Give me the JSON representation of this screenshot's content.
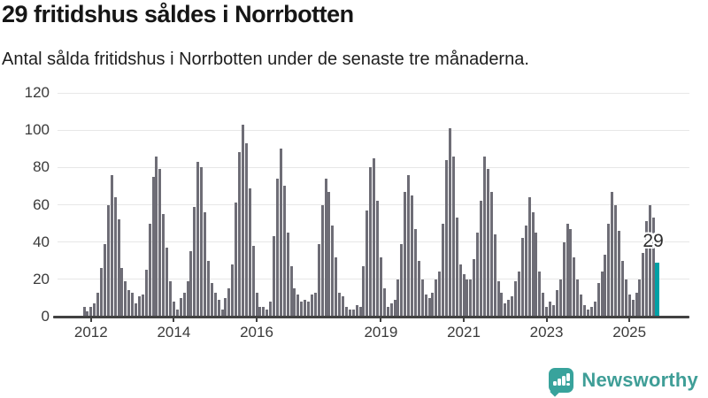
{
  "header": {
    "title": "29 fritidshus såldes i Norrbotten",
    "subtitle": "Antal sålda fritidshus i Norrbotten under de senaste tre månaderna."
  },
  "chart_data": {
    "type": "bar",
    "title": "29 fritidshus såldes i Norrbotten",
    "subtitle": "Antal sålda fritidshus i Norrbotten under de senaste tre månaderna.",
    "xlabel": "",
    "ylabel": "",
    "ylim": [
      0,
      120
    ],
    "y_ticks": [
      0,
      20,
      40,
      60,
      80,
      100,
      120
    ],
    "grid": true,
    "frequency": "monthly, rolling 3-month totals",
    "values": [
      5,
      3,
      5,
      7,
      13,
      26,
      39,
      60,
      76,
      64,
      52,
      26,
      19,
      14,
      13,
      7,
      11,
      12,
      25,
      50,
      75,
      86,
      79,
      55,
      37,
      19,
      8,
      4,
      10,
      13,
      19,
      35,
      59,
      83,
      80,
      56,
      30,
      18,
      13,
      9,
      4,
      10,
      15,
      28,
      61,
      88,
      103,
      93,
      69,
      38,
      13,
      5,
      5,
      4,
      8,
      43,
      74,
      90,
      70,
      45,
      27,
      15,
      12,
      8,
      9,
      8,
      12,
      13,
      39,
      60,
      74,
      67,
      49,
      32,
      13,
      11,
      5,
      4,
      4,
      6,
      5,
      27,
      57,
      80,
      85,
      62,
      32,
      15,
      5,
      7,
      9,
      20,
      39,
      67,
      76,
      65,
      47,
      30,
      20,
      12,
      10,
      13,
      20,
      24,
      50,
      84,
      101,
      86,
      53,
      28,
      23,
      20,
      20,
      31,
      45,
      62,
      86,
      79,
      67,
      44,
      19,
      13,
      7,
      9,
      11,
      19,
      24,
      42,
      49,
      64,
      56,
      45,
      24,
      13,
      5,
      8,
      6,
      14,
      20,
      40,
      50,
      47,
      32,
      20,
      12,
      6,
      4,
      5,
      8,
      18,
      24,
      33,
      50,
      67,
      60,
      46,
      30,
      20,
      12,
      9,
      13,
      20,
      34,
      51,
      60,
      53,
      29
    ],
    "x_ticks": [
      {
        "label": "2012",
        "index": 2
      },
      {
        "label": "2014",
        "index": 26
      },
      {
        "label": "2016",
        "index": 50
      },
      {
        "label": "2019",
        "index": 86
      },
      {
        "label": "2021",
        "index": 110
      },
      {
        "label": "2023",
        "index": 134
      },
      {
        "label": "2025",
        "index": 158
      }
    ],
    "highlight": {
      "index": 166,
      "value": 29,
      "label": "29"
    },
    "colors": {
      "bar": "#6e6d76",
      "highlight_bar": "#00a1a6",
      "grid": "#e7e7e7",
      "axis": "#424242",
      "tick_text": "#3a3a3a"
    }
  },
  "footer": {
    "brand": "Newsworthy",
    "icon": "newsworthy-speech-bubble-chart-icon",
    "brand_color": "#3f9e97"
  }
}
